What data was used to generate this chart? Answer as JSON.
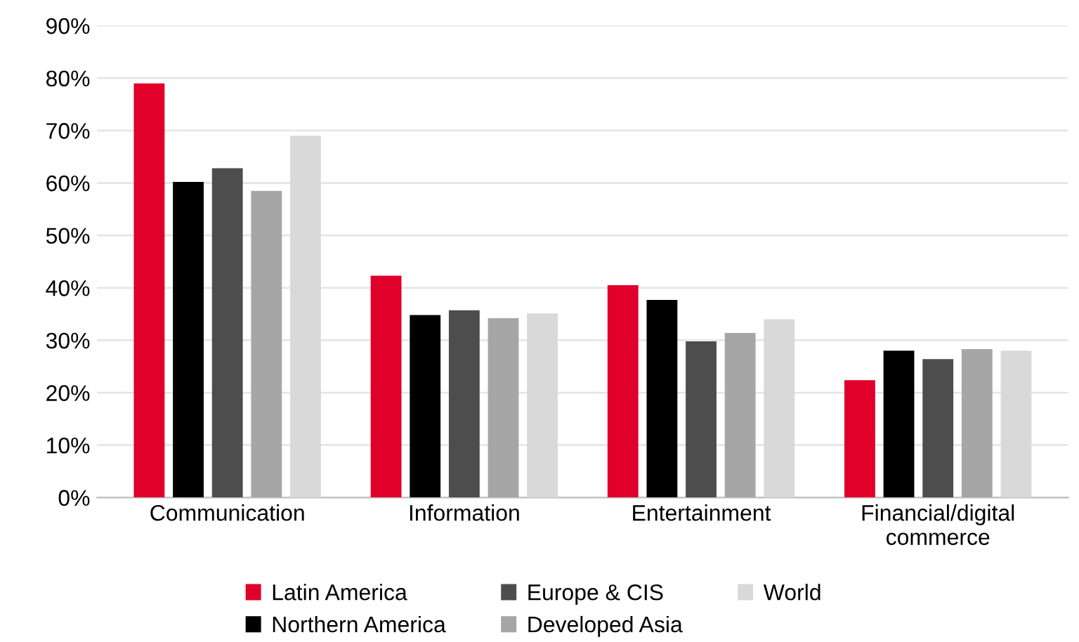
{
  "chart_data": {
    "type": "bar",
    "categories": [
      "Communication",
      "Information",
      "Entertainment",
      "Financial/digital\ncommerce"
    ],
    "series": [
      {
        "name": "Latin America",
        "color": "#e0002a",
        "values": [
          79,
          42.3,
          40.5,
          22.4
        ]
      },
      {
        "name": "Northern America",
        "color": "#000000",
        "values": [
          60.2,
          34.8,
          37.7,
          28
        ]
      },
      {
        "name": "Europe & CIS",
        "color": "#4d4d4d",
        "values": [
          62.8,
          35.7,
          29.8,
          26.4
        ]
      },
      {
        "name": "Developed Asia",
        "color": "#a6a6a6",
        "values": [
          58.5,
          34.2,
          31.4,
          28.3
        ]
      },
      {
        "name": "World",
        "color": "#d9d9d9",
        "values": [
          69,
          35.1,
          34,
          28
        ]
      }
    ],
    "ylim": [
      0,
      90
    ],
    "yticks": [
      {
        "value": 0,
        "label": "0%"
      },
      {
        "value": 10,
        "label": "10%"
      },
      {
        "value": 20,
        "label": "20%"
      },
      {
        "value": 30,
        "label": "30%"
      },
      {
        "value": 40,
        "label": "40%"
      },
      {
        "value": 50,
        "label": "50%"
      },
      {
        "value": 60,
        "label": "60%"
      },
      {
        "value": 70,
        "label": "70%"
      },
      {
        "value": 80,
        "label": "80%"
      },
      {
        "value": 90,
        "label": "90%"
      }
    ],
    "grid": "y",
    "legend": "bottom"
  }
}
